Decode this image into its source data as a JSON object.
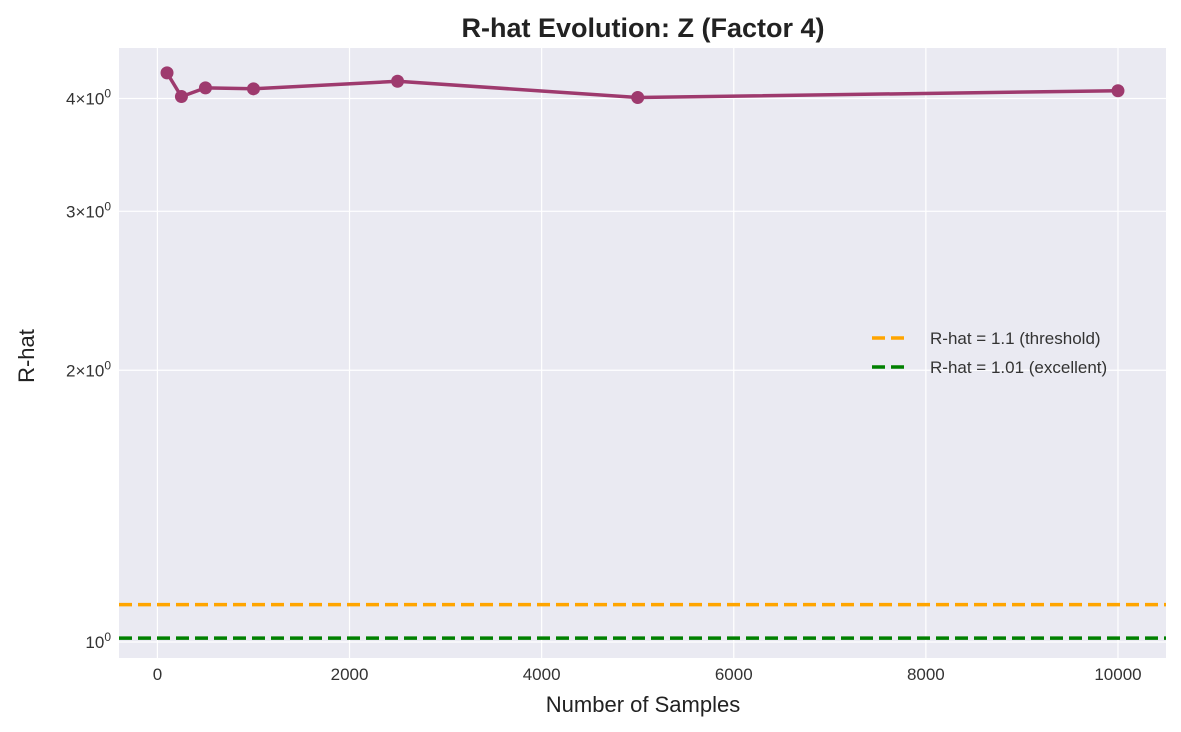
{
  "chart_data": {
    "type": "line",
    "title": "R-hat Evolution: Z (Factor 4)",
    "xlabel": "Number of Samples",
    "ylabel": "R-hat",
    "x_ticks": [
      0,
      2000,
      4000,
      6000,
      8000,
      10000
    ],
    "x_tick_labels": [
      "0",
      "2000",
      "4000",
      "6000",
      "8000",
      "10000"
    ],
    "y_scale": "log",
    "y_ticks": [
      {
        "value": 1,
        "base": "10",
        "exp": "0",
        "mult": ""
      },
      {
        "value": 2,
        "base": "10",
        "exp": "0",
        "mult": "2×"
      },
      {
        "value": 3,
        "base": "10",
        "exp": "0",
        "mult": "3×"
      },
      {
        "value": 4,
        "base": "10",
        "exp": "0",
        "mult": "4×"
      }
    ],
    "xlim": [
      -400,
      10500
    ],
    "ylim": [
      0.96,
      4.55
    ],
    "grid": true,
    "legend_position": "center-right",
    "series": [
      {
        "x": [
          100,
          250,
          500,
          1000,
          2500,
          5000,
          10000
        ],
        "y": [
          4.27,
          4.02,
          4.11,
          4.1,
          4.18,
          4.01,
          4.08
        ],
        "color": "#9e3a6e",
        "marker": "circle"
      }
    ],
    "reference_lines": [
      {
        "name": "R-hat = 1.1 (threshold)",
        "y": 1.1,
        "color": "#ffa500",
        "style": "dashed"
      },
      {
        "name": "R-hat = 1.01 (excellent)",
        "y": 1.01,
        "color": "#008000",
        "style": "dashed"
      }
    ],
    "colors": {
      "plot_background": "#eaeaf2",
      "grid": "#ffffff"
    }
  }
}
